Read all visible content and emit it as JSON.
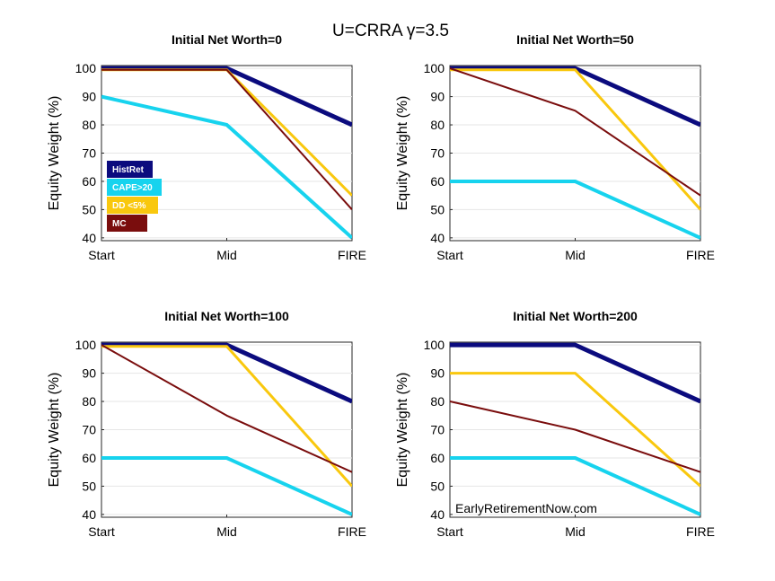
{
  "figure": {
    "title": "U=CRRA γ=3.5",
    "watermark": "EarlyRetirementNow.com"
  },
  "legend": {
    "placement": "lower-left (first panel)",
    "entries": [
      {
        "label": "HistRet",
        "color": "#0b0b7e"
      },
      {
        "label": "CAPE>20",
        "color": "#17d3ee"
      },
      {
        "label": "DD <5%",
        "color": "#f9c80e"
      },
      {
        "label": "MC",
        "color": "#7a0d0d"
      }
    ]
  },
  "chart_data": [
    {
      "type": "line",
      "title": "Initial Net Worth=0",
      "ylabel": "Equity Weight (%)",
      "xlabel": "",
      "categories": [
        "Start",
        "Mid",
        "FIRE"
      ],
      "yticks": [
        "40",
        "50",
        "60",
        "70",
        "80",
        "90",
        "100"
      ],
      "ylim": [
        39,
        101
      ],
      "grid": true,
      "series": [
        {
          "name": "HistRet",
          "color": "#0b0b7e",
          "width": 5,
          "values": [
            100,
            100,
            80
          ]
        },
        {
          "name": "CAPE>20",
          "color": "#17d3ee",
          "width": 4,
          "values": [
            90,
            80,
            40
          ]
        },
        {
          "name": "DD <5%",
          "color": "#f9c80e",
          "width": 3,
          "values": [
            99.5,
            99.5,
            55
          ]
        },
        {
          "name": "MC",
          "color": "#7a0d0d",
          "width": 2,
          "values": [
            99.5,
            99.5,
            50
          ]
        }
      ]
    },
    {
      "type": "line",
      "title": "Initial Net Worth=50",
      "ylabel": "Equity Weight (%)",
      "xlabel": "",
      "categories": [
        "Start",
        "Mid",
        "FIRE"
      ],
      "yticks": [
        "40",
        "50",
        "60",
        "70",
        "80",
        "90",
        "100"
      ],
      "ylim": [
        39,
        101
      ],
      "grid": true,
      "series": [
        {
          "name": "HistRet",
          "color": "#0b0b7e",
          "width": 5,
          "values": [
            100,
            100,
            80
          ]
        },
        {
          "name": "CAPE>20",
          "color": "#17d3ee",
          "width": 4,
          "values": [
            60,
            60,
            40
          ]
        },
        {
          "name": "DD <5%",
          "color": "#f9c80e",
          "width": 3,
          "values": [
            99.5,
            99.5,
            50
          ]
        },
        {
          "name": "MC",
          "color": "#7a0d0d",
          "width": 2,
          "values": [
            100,
            85,
            55
          ]
        }
      ]
    },
    {
      "type": "line",
      "title": "Initial Net Worth=100",
      "ylabel": "Equity Weight (%)",
      "xlabel": "",
      "categories": [
        "Start",
        "Mid",
        "FIRE"
      ],
      "yticks": [
        "40",
        "50",
        "60",
        "70",
        "80",
        "90",
        "100"
      ],
      "ylim": [
        39,
        101
      ],
      "grid": true,
      "series": [
        {
          "name": "HistRet",
          "color": "#0b0b7e",
          "width": 5,
          "values": [
            100,
            100,
            80
          ]
        },
        {
          "name": "CAPE>20",
          "color": "#17d3ee",
          "width": 4,
          "values": [
            60,
            60,
            40
          ]
        },
        {
          "name": "DD <5%",
          "color": "#f9c80e",
          "width": 3,
          "values": [
            99.5,
            99.5,
            50
          ]
        },
        {
          "name": "MC",
          "color": "#7a0d0d",
          "width": 2,
          "values": [
            100,
            75,
            55
          ]
        }
      ]
    },
    {
      "type": "line",
      "title": "Initial Net Worth=200",
      "ylabel": "Equity Weight (%)",
      "xlabel": "",
      "categories": [
        "Start",
        "Mid",
        "FIRE"
      ],
      "yticks": [
        "40",
        "50",
        "60",
        "70",
        "80",
        "90",
        "100"
      ],
      "ylim": [
        39,
        101
      ],
      "grid": true,
      "series": [
        {
          "name": "HistRet",
          "color": "#0b0b7e",
          "width": 5,
          "values": [
            100,
            100,
            80
          ]
        },
        {
          "name": "CAPE>20",
          "color": "#17d3ee",
          "width": 4,
          "values": [
            60,
            60,
            40
          ]
        },
        {
          "name": "DD <5%",
          "color": "#f9c80e",
          "width": 3,
          "values": [
            90,
            90,
            50
          ]
        },
        {
          "name": "MC",
          "color": "#7a0d0d",
          "width": 2,
          "values": [
            80,
            70,
            55
          ]
        }
      ]
    }
  ]
}
